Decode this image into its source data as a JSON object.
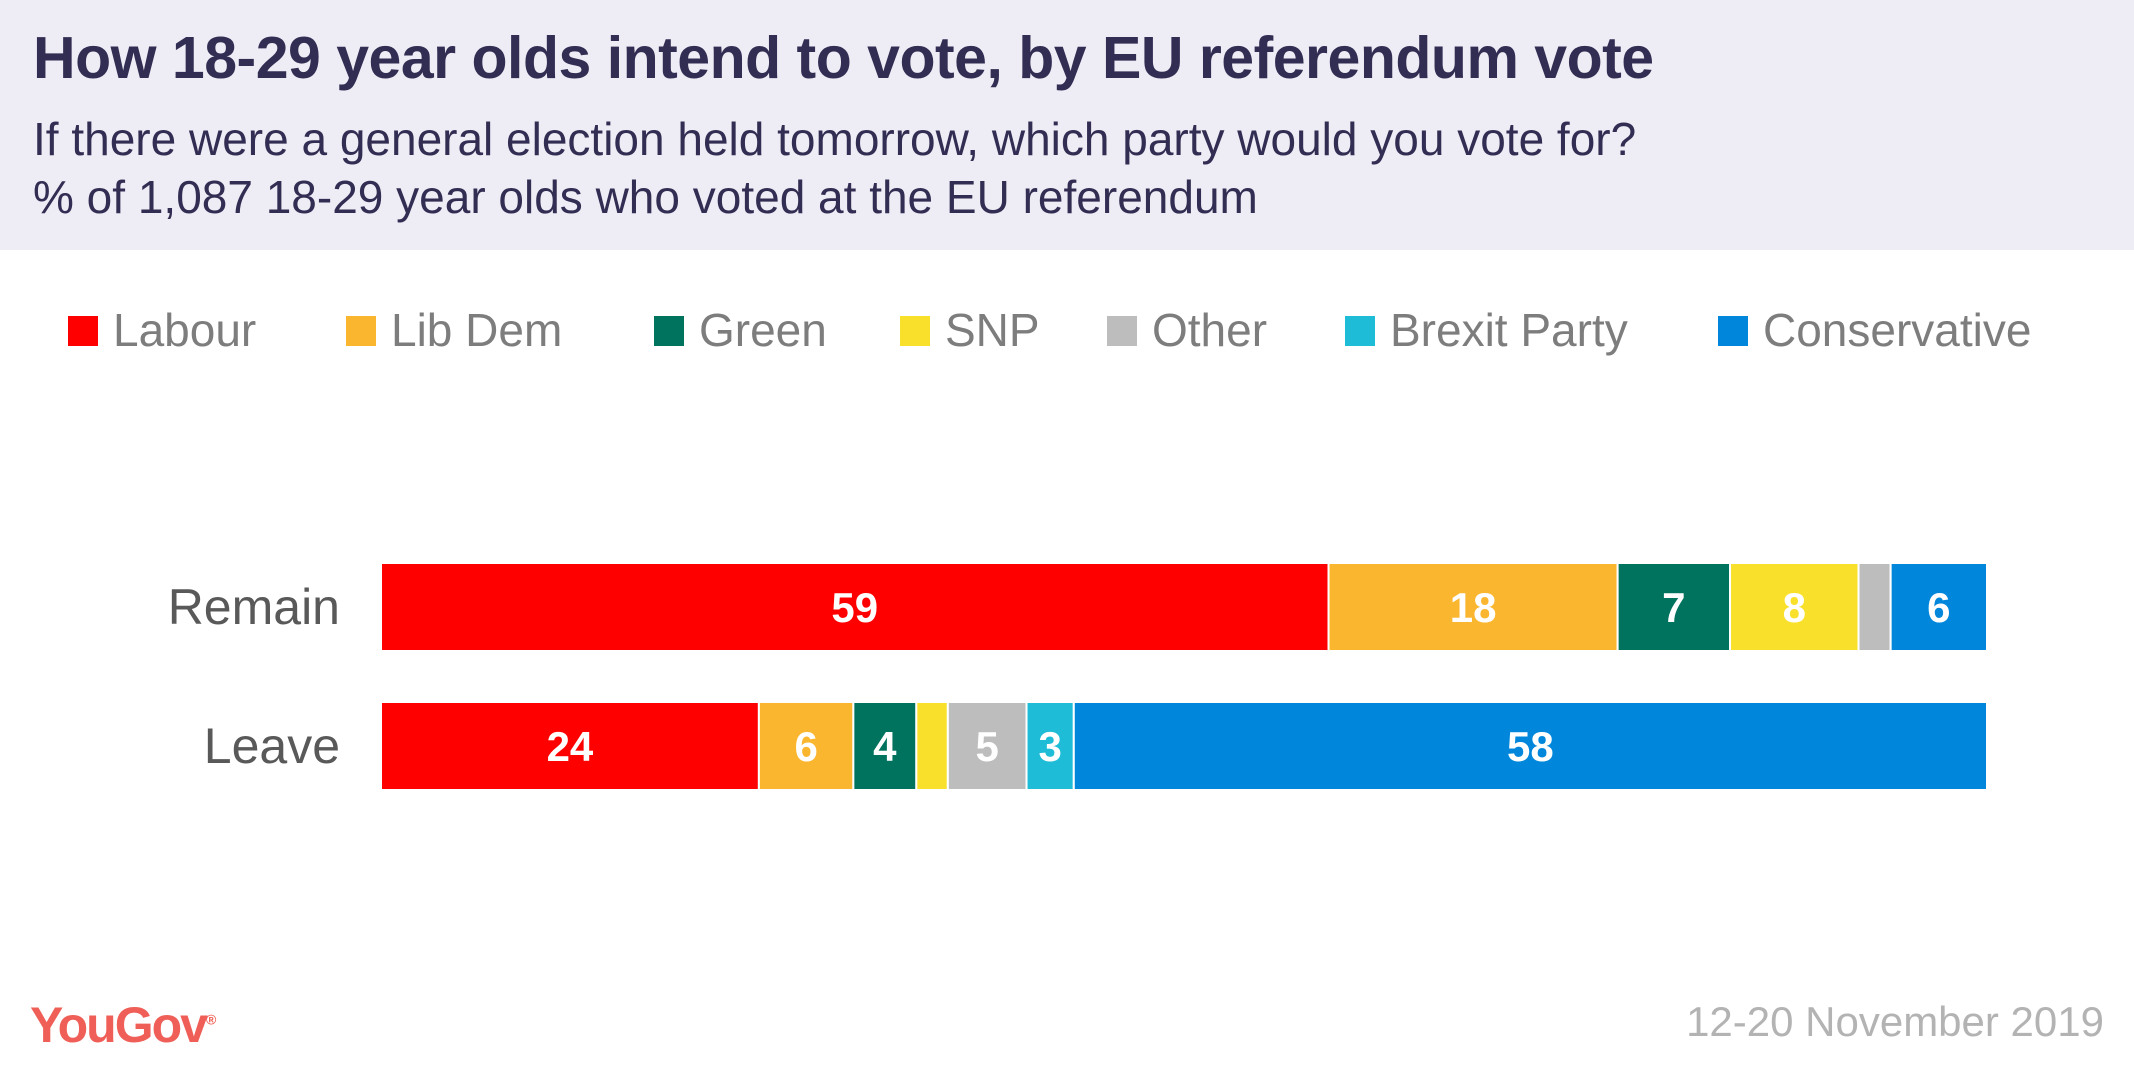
{
  "header": {
    "title": "How 18-29 year olds intend to vote, by EU referendum vote",
    "subtitle_1": "If there were a general election held tomorrow, which party would you vote for?",
    "subtitle_2": "% of 1,087 18-29 year olds who voted at the EU referendum"
  },
  "footer": {
    "logo": "YouGov",
    "date": "12-20 November 2019"
  },
  "chart_data": {
    "type": "bar",
    "orientation": "horizontal",
    "stacked": true,
    "legend_position": "top",
    "categories": [
      "Remain",
      "Leave"
    ],
    "series": [
      {
        "name": "Labour",
        "color": "#ff0000",
        "values": [
          59,
          24
        ],
        "labels": [
          "59",
          "24"
        ]
      },
      {
        "name": "Lib Dem",
        "color": "#fbb630",
        "values": [
          18,
          6
        ],
        "labels": [
          "18",
          "6"
        ]
      },
      {
        "name": "Green",
        "color": "#00735e",
        "values": [
          7,
          4
        ],
        "labels": [
          "7",
          "4"
        ]
      },
      {
        "name": "SNP",
        "color": "#f8e02b",
        "values": [
          8,
          2
        ],
        "labels": [
          "8",
          ""
        ]
      },
      {
        "name": "Other",
        "color": "#bdbdbd",
        "values": [
          2,
          5
        ],
        "labels": [
          "",
          "5"
        ]
      },
      {
        "name": "Brexit Party",
        "color": "#1ebcd6",
        "values": [
          0,
          3
        ],
        "labels": [
          "",
          "3"
        ]
      },
      {
        "name": "Conservative",
        "color": "#0087dc",
        "values": [
          6,
          58
        ],
        "labels": [
          "6",
          "58"
        ]
      }
    ]
  }
}
